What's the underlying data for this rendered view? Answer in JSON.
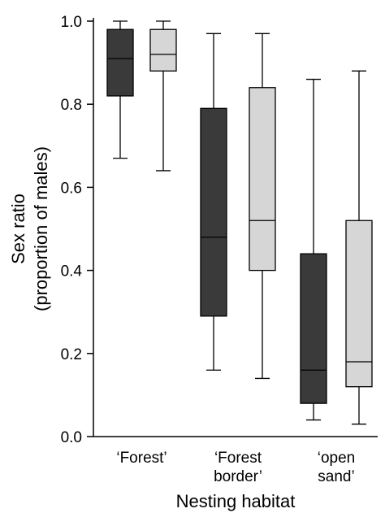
{
  "chart_data": {
    "type": "boxplot",
    "xlabel": "Nesting habitat",
    "ylabel": [
      "Sex ratio",
      "(proportion of males)"
    ],
    "ylim": [
      0.0,
      1.0
    ],
    "yticks": [
      "0.0",
      "0.2",
      "0.4",
      "0.6",
      "0.8",
      "1.0"
    ],
    "grid": false,
    "categories": [
      {
        "label_lines": [
          "‘Forest’"
        ]
      },
      {
        "label_lines": [
          "‘Forest",
          "border’"
        ]
      },
      {
        "label_lines": [
          "‘open",
          "sand’"
        ]
      }
    ],
    "box_colors": {
      "dark": "#3a3a3a",
      "light": "#d6d6d6",
      "stroke": "#000000"
    },
    "boxes": [
      {
        "category": 0,
        "shade": "dark",
        "whisker_low": 0.67,
        "q1": 0.82,
        "median": 0.91,
        "q3": 0.98,
        "whisker_high": 1.0
      },
      {
        "category": 0,
        "shade": "light",
        "whisker_low": 0.64,
        "q1": 0.88,
        "median": 0.92,
        "q3": 0.98,
        "whisker_high": 1.0
      },
      {
        "category": 1,
        "shade": "dark",
        "whisker_low": 0.16,
        "q1": 0.29,
        "median": 0.48,
        "q3": 0.79,
        "whisker_high": 0.97
      },
      {
        "category": 1,
        "shade": "light",
        "whisker_low": 0.14,
        "q1": 0.4,
        "median": 0.52,
        "q3": 0.84,
        "whisker_high": 0.97
      },
      {
        "category": 2,
        "shade": "dark",
        "whisker_low": 0.04,
        "q1": 0.08,
        "median": 0.16,
        "q3": 0.44,
        "whisker_high": 0.86
      },
      {
        "category": 2,
        "shade": "light",
        "whisker_low": 0.03,
        "q1": 0.12,
        "median": 0.18,
        "q3": 0.52,
        "whisker_high": 0.88
      }
    ]
  }
}
